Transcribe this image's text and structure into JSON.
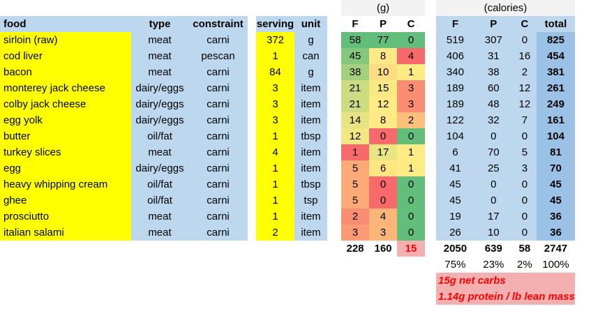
{
  "headers": {
    "food": "food",
    "type": "type",
    "constraint": "constraint",
    "serving": "serving",
    "unit": "unit",
    "grams_group": "(g)",
    "calories_group": "(calories)",
    "g_f": "F",
    "g_p": "P",
    "g_c": "C",
    "c_f": "F",
    "c_p": "P",
    "c_c": "C",
    "c_total": "total"
  },
  "rows": [
    {
      "food": "sirloin (raw)",
      "type": "meat",
      "constraint": "carni",
      "serving": "372",
      "unit": "g",
      "gf": "58",
      "gp": "77",
      "gc": "0",
      "cf": "519",
      "cp": "307",
      "cc": "0",
      "total": "825"
    },
    {
      "food": "cod liver",
      "type": "meat",
      "constraint": "pescan",
      "serving": "1",
      "unit": "can",
      "gf": "45",
      "gp": "8",
      "gc": "4",
      "cf": "406",
      "cp": "31",
      "cc": "16",
      "total": "454"
    },
    {
      "food": "bacon",
      "type": "meat",
      "constraint": "carni",
      "serving": "84",
      "unit": "g",
      "gf": "38",
      "gp": "10",
      "gc": "1",
      "cf": "340",
      "cp": "38",
      "cc": "2",
      "total": "381"
    },
    {
      "food": "monterey jack cheese",
      "type": "dairy/eggs",
      "constraint": "carni",
      "serving": "3",
      "unit": "item",
      "gf": "21",
      "gp": "15",
      "gc": "3",
      "cf": "189",
      "cp": "60",
      "cc": "12",
      "total": "261"
    },
    {
      "food": "colby jack cheese",
      "type": "dairy/eggs",
      "constraint": "carni",
      "serving": "3",
      "unit": "item",
      "gf": "21",
      "gp": "12",
      "gc": "3",
      "cf": "189",
      "cp": "48",
      "cc": "12",
      "total": "249"
    },
    {
      "food": "egg yolk",
      "type": "dairy/eggs",
      "constraint": "carni",
      "serving": "3",
      "unit": "item",
      "gf": "14",
      "gp": "8",
      "gc": "2",
      "cf": "122",
      "cp": "32",
      "cc": "7",
      "total": "161"
    },
    {
      "food": "butter",
      "type": "oil/fat",
      "constraint": "carni",
      "serving": "1",
      "unit": "tbsp",
      "gf": "12",
      "gp": "0",
      "gc": "0",
      "cf": "104",
      "cp": "0",
      "cc": "0",
      "total": "104"
    },
    {
      "food": "turkey slices",
      "type": "meat",
      "constraint": "carni",
      "serving": "4",
      "unit": "item",
      "gf": "1",
      "gp": "17",
      "gc": "1",
      "cf": "6",
      "cp": "70",
      "cc": "5",
      "total": "81"
    },
    {
      "food": "egg",
      "type": "dairy/eggs",
      "constraint": "carni",
      "serving": "1",
      "unit": "item",
      "gf": "5",
      "gp": "6",
      "gc": "1",
      "cf": "41",
      "cp": "25",
      "cc": "3",
      "total": "70"
    },
    {
      "food": "heavy whipping cream",
      "type": "oil/fat",
      "constraint": "carni",
      "serving": "1",
      "unit": "tbsp",
      "gf": "5",
      "gp": "0",
      "gc": "0",
      "cf": "45",
      "cp": "0",
      "cc": "0",
      "total": "45"
    },
    {
      "food": "ghee",
      "type": "oil/fat",
      "constraint": "carni",
      "serving": "1",
      "unit": "tsp",
      "gf": "5",
      "gp": "0",
      "gc": "0",
      "cf": "45",
      "cp": "0",
      "cc": "0",
      "total": "45"
    },
    {
      "food": "prosciutto",
      "type": "meat",
      "constraint": "carni",
      "serving": "1",
      "unit": "item",
      "gf": "2",
      "gp": "4",
      "gc": "0",
      "cf": "19",
      "cp": "17",
      "cc": "0",
      "total": "36"
    },
    {
      "food": "italian salami",
      "type": "meat",
      "constraint": "carni",
      "serving": "2",
      "unit": "item",
      "gf": "3",
      "gp": "3",
      "gc": "0",
      "cf": "26",
      "cp": "10",
      "cc": "0",
      "total": "36"
    }
  ],
  "cell_colors": {
    "gf": [
      "#63be7b",
      "#84c77d",
      "#a5d17e",
      "#cbdc81",
      "#cbdc81",
      "#e6e383",
      "#f2e783",
      "#f8696b",
      "#fcab77",
      "#fcab77",
      "#fcab77",
      "#fa8c71",
      "#fb9a74"
    ],
    "gp": [
      "#63be7b",
      "#ffe984",
      "#fedc81",
      "#f8e983",
      "#ffeb84",
      "#ffe984",
      "#f8696b",
      "#e8e582",
      "#ffe683",
      "#f8696b",
      "#f8696b",
      "#fcb579",
      "#fcb579"
    ],
    "gc": [
      "#63be7b",
      "#f8696b",
      "#ffeb84",
      "#fa8c71",
      "#fa8c71",
      "#fdc07b",
      "#63be7b",
      "#ffeb84",
      "#ffeb84",
      "#63be7b",
      "#63be7b",
      "#63be7b",
      "#63be7b"
    ]
  },
  "totals": {
    "gf": "228",
    "gp": "160",
    "gc": "15",
    "cf": "2050",
    "cp": "639",
    "cc": "58",
    "total": "2747"
  },
  "percents": {
    "f": "75%",
    "p": "23%",
    "c": "2%",
    "total": "100%"
  },
  "notes": [
    "15g net carbs",
    "1.14g protein / lb lean mass"
  ]
}
